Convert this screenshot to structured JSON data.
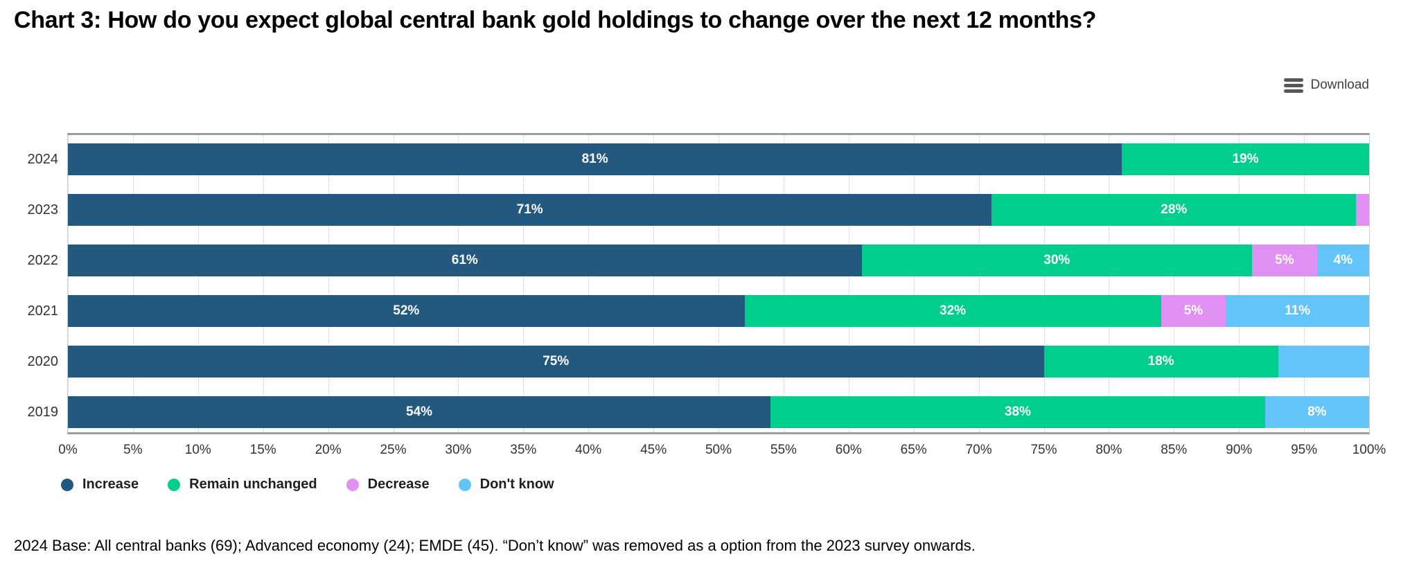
{
  "title": "Chart 3: How do you expect global central bank gold holdings to change over the next 12 months?",
  "toolbar": {
    "download_label": "Download"
  },
  "footnote": "2024 Base: All central banks (69); Advanced economy (24); EMDE (45). “Don’t know” was removed as a option from the 2023 survey onwards.",
  "chart_data": {
    "type": "bar",
    "orientation": "horizontal",
    "stacked": true,
    "grid": "vertical-dotted",
    "legend_position": "bottom",
    "xlim": [
      0,
      100
    ],
    "x_tick_labels": [
      "0%",
      "5%",
      "10%",
      "15%",
      "20%",
      "25%",
      "30%",
      "35%",
      "40%",
      "45%",
      "50%",
      "55%",
      "60%",
      "65%",
      "70%",
      "75%",
      "80%",
      "85%",
      "90%",
      "95%",
      "100%"
    ],
    "categories": [
      "2024",
      "2023",
      "2022",
      "2021",
      "2020",
      "2019"
    ],
    "series": [
      {
        "name": "Increase",
        "color": "#24597F"
      },
      {
        "name": "Remain unchanged",
        "color": "#00CE8C"
      },
      {
        "name": "Decrease",
        "color": "#DF90F2"
      },
      {
        "name": "Don't know",
        "color": "#62C4F8"
      }
    ],
    "rows": [
      {
        "category": "2024",
        "segments": [
          {
            "series": 0,
            "value": 81,
            "label": "81%"
          },
          {
            "series": 1,
            "value": 19,
            "label": "19%"
          }
        ]
      },
      {
        "category": "2023",
        "segments": [
          {
            "series": 0,
            "value": 71,
            "label": "71%"
          },
          {
            "series": 1,
            "value": 28,
            "label": "28%"
          },
          {
            "series": 2,
            "value": 1,
            "label": ""
          }
        ]
      },
      {
        "category": "2022",
        "segments": [
          {
            "series": 0,
            "value": 61,
            "label": "61%"
          },
          {
            "series": 1,
            "value": 30,
            "label": "30%"
          },
          {
            "series": 2,
            "value": 5,
            "label": "5%"
          },
          {
            "series": 3,
            "value": 4,
            "label": "4%"
          }
        ]
      },
      {
        "category": "2021",
        "segments": [
          {
            "series": 0,
            "value": 52,
            "label": "52%"
          },
          {
            "series": 1,
            "value": 32,
            "label": "32%"
          },
          {
            "series": 2,
            "value": 5,
            "label": "5%"
          },
          {
            "series": 3,
            "value": 11,
            "label": "11%"
          }
        ]
      },
      {
        "category": "2020",
        "segments": [
          {
            "series": 0,
            "value": 75,
            "label": "75%"
          },
          {
            "series": 1,
            "value": 18,
            "label": "18%"
          },
          {
            "series": 3,
            "value": 7,
            "label": ""
          }
        ]
      },
      {
        "category": "2019",
        "segments": [
          {
            "series": 0,
            "value": 54,
            "label": "54%"
          },
          {
            "series": 1,
            "value": 38,
            "label": "38%"
          },
          {
            "series": 3,
            "value": 8,
            "label": "8%"
          }
        ]
      }
    ]
  }
}
